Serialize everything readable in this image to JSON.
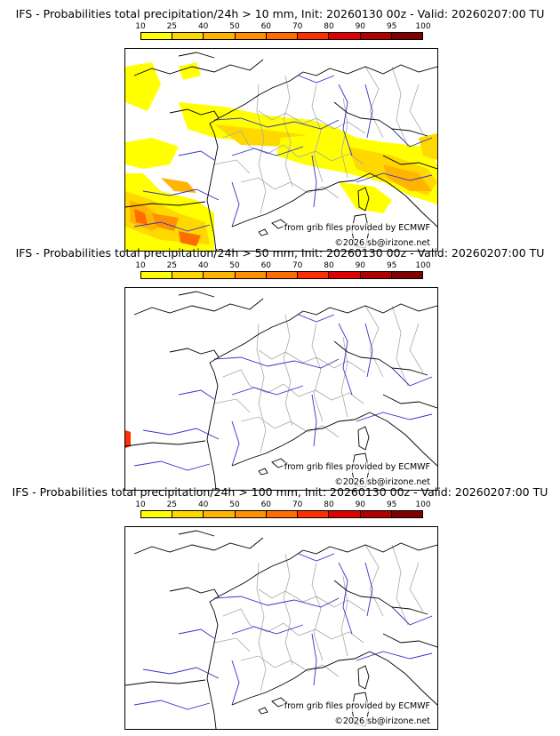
{
  "panels": [
    {
      "title": "IFS - Probabilities total precipitation/24h > 10 mm, Init: 20260130 00z - Valid: 20260207:00 TU",
      "source": "from grib files provided by ECMWF",
      "copyright": "©2026 sb@irizone.net",
      "precip_areas": "yes"
    },
    {
      "title": "IFS - Probabilities total precipitation/24h > 50 mm, Init: 20260130 00z - Valid: 20260207:00 TU",
      "source": "from grib files provided by ECMWF",
      "copyright": "©2026 sb@irizone.net",
      "precip_areas": "small"
    },
    {
      "title": "IFS - Probabilities total precipitation/24h > 100 mm, Init: 20260130 00z - Valid: 20260207:00 TU",
      "source": "from grib files provided by ECMWF",
      "copyright": "©2026 sb@irizone.net",
      "precip_areas": "none"
    }
  ],
  "colorbar": {
    "ticks": [
      "10",
      "25",
      "40",
      "50",
      "60",
      "70",
      "80",
      "90",
      "95",
      "100"
    ],
    "colors": [
      "#ffff00",
      "#ffd800",
      "#ffb400",
      "#ff9000",
      "#ff6c00",
      "#ff3000",
      "#e00000",
      "#b00000",
      "#800000"
    ]
  },
  "colors": {
    "rivers": "#3333cc",
    "borders": "#aaaaaa",
    "coast": "#000000"
  }
}
